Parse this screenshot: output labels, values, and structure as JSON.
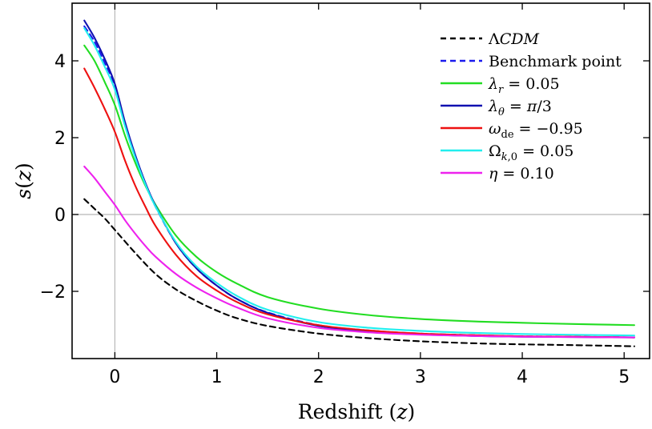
{
  "chart_data": {
    "type": "line",
    "xlabel": "Redshift (z)",
    "ylabel": "s(z)",
    "xlim": [
      -0.42,
      5.25
    ],
    "ylim": [
      -3.75,
      5.5
    ],
    "x_ticks": [
      0,
      1,
      2,
      3,
      4,
      5
    ],
    "y_ticks": [
      -2,
      0,
      2,
      4
    ],
    "x_tick_labels": [
      "0",
      "1",
      "2",
      "3",
      "4",
      "5"
    ],
    "y_tick_labels": [
      "−2",
      "0",
      "2",
      "4"
    ],
    "grid": false,
    "zero_lines": true,
    "legend_position": "top-right",
    "series": [
      {
        "name": "ΛCDM",
        "color": "#000000",
        "dash": "dashed",
        "x": [
          -0.3,
          -0.2,
          -0.1,
          0,
          0.2,
          0.4,
          0.6,
          0.8,
          1.0,
          1.2,
          1.5,
          2.0,
          2.5,
          3.0,
          3.5,
          4.0,
          4.5,
          5.1
        ],
        "y": [
          0.4,
          0.15,
          -0.1,
          -0.4,
          -1.0,
          -1.55,
          -1.95,
          -2.25,
          -2.5,
          -2.7,
          -2.9,
          -3.1,
          -3.22,
          -3.3,
          -3.35,
          -3.38,
          -3.4,
          -3.43
        ]
      },
      {
        "name": "Benchmark point",
        "color": "#1a1aee",
        "dash": "dashed",
        "x": [
          -0.3,
          -0.2,
          -0.1,
          0,
          0.1,
          0.2,
          0.3,
          0.4,
          0.6,
          0.8,
          1.0,
          1.2,
          1.5,
          2.0,
          2.5,
          3.0,
          3.5,
          4.0,
          4.5,
          5.1
        ],
        "y": [
          4.9,
          4.5,
          3.95,
          3.35,
          2.35,
          1.5,
          0.8,
          0.2,
          -0.75,
          -1.4,
          -1.85,
          -2.2,
          -2.55,
          -2.88,
          -3.02,
          -3.1,
          -3.14,
          -3.17,
          -3.18,
          -3.2
        ]
      },
      {
        "name": "λ_r = 0.05",
        "color": "#22dd22",
        "dash": "solid",
        "x": [
          -0.3,
          -0.2,
          -0.1,
          0,
          0.1,
          0.2,
          0.3,
          0.4,
          0.6,
          0.8,
          1.0,
          1.2,
          1.5,
          2.0,
          2.5,
          3.0,
          3.5,
          4.0,
          4.5,
          5.1
        ],
        "y": [
          4.4,
          4.0,
          3.45,
          2.85,
          2.05,
          1.35,
          0.75,
          0.25,
          -0.55,
          -1.1,
          -1.5,
          -1.8,
          -2.15,
          -2.45,
          -2.62,
          -2.72,
          -2.78,
          -2.82,
          -2.85,
          -2.88
        ]
      },
      {
        "name": "λ_θ = π/3",
        "color": "#1010b0",
        "dash": "solid",
        "x": [
          -0.3,
          -0.2,
          -0.1,
          0,
          0.1,
          0.2,
          0.3,
          0.4,
          0.6,
          0.8,
          1.0,
          1.2,
          1.5,
          2.0,
          2.5,
          3.0,
          3.5,
          4.0,
          4.5,
          5.1
        ],
        "y": [
          5.05,
          4.6,
          4.05,
          3.4,
          2.4,
          1.55,
          0.82,
          0.22,
          -0.75,
          -1.4,
          -1.85,
          -2.2,
          -2.56,
          -2.9,
          -3.04,
          -3.12,
          -3.16,
          -3.18,
          -3.19,
          -3.2
        ]
      },
      {
        "name": "ω_de = −0.95",
        "color": "#ee1111",
        "dash": "solid",
        "x": [
          -0.3,
          -0.2,
          -0.1,
          0,
          0.1,
          0.2,
          0.3,
          0.4,
          0.6,
          0.8,
          1.0,
          1.2,
          1.5,
          2.0,
          2.5,
          3.0,
          3.5,
          4.0,
          4.5,
          5.1
        ],
        "y": [
          3.8,
          3.3,
          2.75,
          2.15,
          1.4,
          0.75,
          0.2,
          -0.3,
          -1.05,
          -1.6,
          -1.98,
          -2.28,
          -2.6,
          -2.88,
          -3.02,
          -3.1,
          -3.14,
          -3.17,
          -3.18,
          -3.2
        ]
      },
      {
        "name": "Ω_k,0 = 0.05",
        "color": "#22eeee",
        "dash": "solid",
        "x": [
          -0.3,
          -0.2,
          -0.1,
          0,
          0.1,
          0.2,
          0.3,
          0.4,
          0.6,
          0.8,
          1.0,
          1.2,
          1.5,
          2.0,
          2.5,
          3.0,
          3.5,
          4.0,
          4.5,
          5.1
        ],
        "y": [
          4.85,
          4.4,
          3.85,
          3.25,
          2.3,
          1.48,
          0.78,
          0.2,
          -0.72,
          -1.35,
          -1.78,
          -2.12,
          -2.48,
          -2.8,
          -2.95,
          -3.03,
          -3.08,
          -3.11,
          -3.13,
          -3.15
        ]
      },
      {
        "name": "η = 0.10",
        "color": "#ee22ee",
        "dash": "solid",
        "x": [
          -0.3,
          -0.2,
          -0.1,
          0,
          0.1,
          0.2,
          0.3,
          0.4,
          0.6,
          0.8,
          1.0,
          1.2,
          1.5,
          2.0,
          2.5,
          3.0,
          3.5,
          4.0,
          4.5,
          5.1
        ],
        "y": [
          1.25,
          0.95,
          0.6,
          0.25,
          -0.15,
          -0.5,
          -0.82,
          -1.1,
          -1.55,
          -1.9,
          -2.18,
          -2.42,
          -2.7,
          -2.95,
          -3.07,
          -3.13,
          -3.16,
          -3.18,
          -3.19,
          -3.2
        ]
      }
    ]
  }
}
